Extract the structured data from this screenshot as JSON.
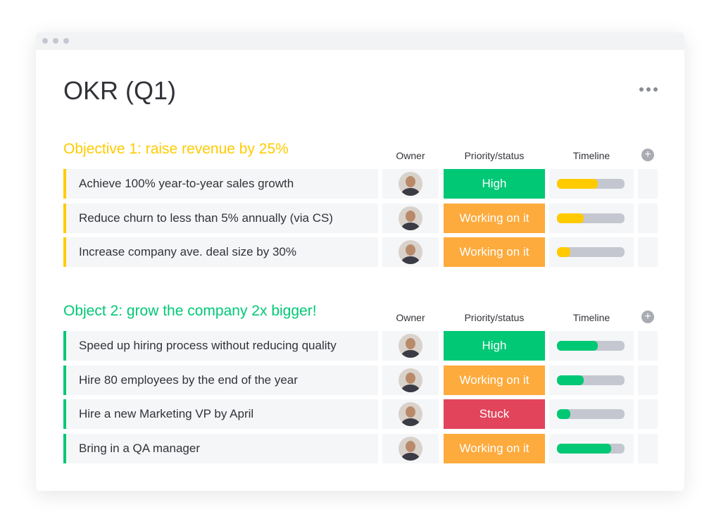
{
  "header": {
    "title": "OKR (Q1)"
  },
  "groups": [
    {
      "title": "Objective 1: raise revenue by 25%",
      "color": "#ffcb00",
      "columns": [
        "Owner",
        "Priority/status",
        "Timeline"
      ],
      "rows": [
        {
          "item": "Achieve 100% year-to-year sales growth",
          "status": "High",
          "status_color": "#00c875",
          "timeline": 60
        },
        {
          "item": "Reduce churn to less than 5% annually (via CS)",
          "status": "Working on it",
          "status_color": "#fdab3d",
          "timeline": 40
        },
        {
          "item": "Increase company ave. deal size by 30%",
          "status": "Working on it",
          "status_color": "#fdab3d",
          "timeline": 20
        }
      ]
    },
    {
      "title": "Object 2: grow the company 2x bigger!",
      "color": "#00c875",
      "columns": [
        "Owner",
        "Priority/status",
        "Timeline"
      ],
      "rows": [
        {
          "item": "Speed up hiring process without reducing quality",
          "status": "High",
          "status_color": "#00c875",
          "timeline": 60
        },
        {
          "item": "Hire 80 employees by the end of the year",
          "status": "Working on it",
          "status_color": "#fdab3d",
          "timeline": 40
        },
        {
          "item": "Hire a new Marketing VP by April",
          "status": "Stuck",
          "status_color": "#e2445c",
          "timeline": 20
        },
        {
          "item": "Bring in a QA manager",
          "status": "Working on it",
          "status_color": "#fdab3d",
          "timeline": 80
        }
      ]
    }
  ]
}
